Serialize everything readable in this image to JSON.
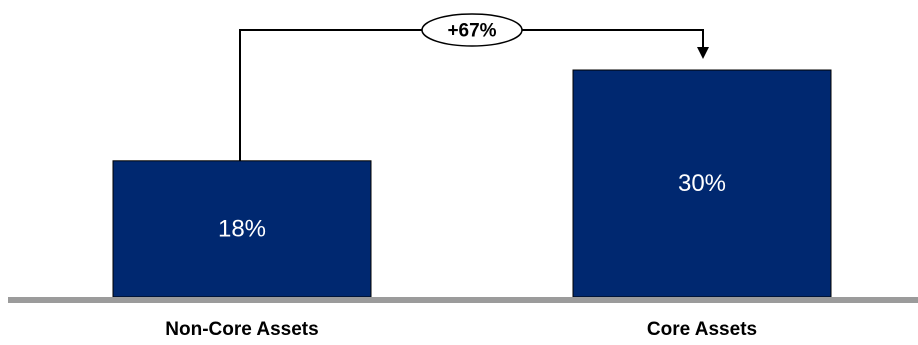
{
  "chart_data": {
    "type": "bar",
    "categories": [
      "Non-Core Assets",
      "Core Assets"
    ],
    "values": [
      18,
      30
    ],
    "value_labels": [
      "18%",
      "30%"
    ],
    "growth_annotation": "+67%",
    "title": "",
    "xlabel": "",
    "ylabel": "",
    "ylim": [
      0,
      30
    ],
    "grid": false,
    "colors": {
      "bar": "#002870",
      "baseline": "#9b9b9b",
      "connector": "#000000"
    }
  }
}
